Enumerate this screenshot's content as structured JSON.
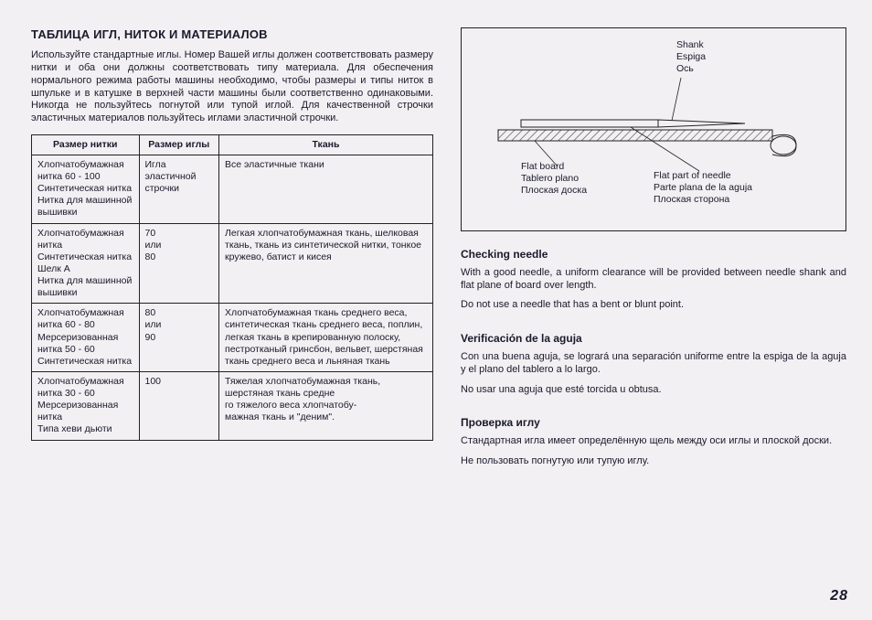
{
  "left": {
    "title": "ТАБЛИЦА ИГЛ, НИТОК И МАТЕРИАЛОВ",
    "intro": "Используйте стандартные иглы. Номер Вашей иглы должен соответствовать размеру нитки и оба они должны соответствовать типу материала. Для обеспечения нормального режима работы машины необходимо, чтобы размеры и типы ниток в шпульке и в катушке в верхней части машины были соответственно одинаковыми. Никогда не пользуйтесь погнутой или тупой иглой. Для качественной строчки эластичных материалов пользуйтесь иглами эластичной строчки.",
    "headers": {
      "c1": "Размер нитки",
      "c2": "Размер иглы",
      "c3": "Ткань"
    },
    "rows": [
      {
        "thread": "Хлопчатобумажная нитка 60 - 100\nСинтетическая нитка\nНитка для машинной вышивки",
        "needle": "Игла эластичной строчки",
        "fabric": "Все эластичные ткани"
      },
      {
        "thread": "Хлопчатобумажная нитка\nСинтетическая нитка\nШелк A\nНитка для машинной вышивки",
        "needle": "70\nили\n80",
        "fabric": "Легкая хлопчатобумажная ткань, шелковая ткань, ткань из синтетической нитки, тонкое кружево, батист и кисея"
      },
      {
        "thread": "Хлопчатобумажная нитка 60 - 80\nМерсеризованная нитка 50 - 60\nСинтетическая нитка",
        "needle": "80\nили\n90",
        "fabric": "Хлопчатобумажная ткань среднего веса, синтетическая ткань среднего веса, поплин, легкая ткань в крепированную полоску, пестротканый гринсбон, вельвет, шерстяная ткань среднего веса и льняная ткань"
      },
      {
        "thread": "Хлопчатобумажная нитка 30 - 60\nМерсеризованная нитка\nТипа хеви дьюти",
        "needle": "100",
        "fabric": "Тяжелая хлопчатобумажная ткань, шерстяная ткань средне\nго тяжелого веса хлопчатобу-\nмажная ткань и \"деним\"."
      }
    ]
  },
  "diagram": {
    "shank1": "Shank",
    "shank2": "Espiga",
    "shank3": "Ось",
    "board1": "Flat board",
    "board2": "Tablero plano",
    "board3": "Плоская доска",
    "flat1": "Flat part of needle",
    "flat2": "Parte plana de la aguja",
    "flat3": "Плоская сторона",
    "hatch": "#555"
  },
  "sections": [
    {
      "heading": "Checking needle",
      "p1": "With a good needle, a uniform clearance will be provided between needle shank and flat plane of board over length.",
      "p2": "Do not use a needle that has a bent or blunt point."
    },
    {
      "heading": "Verificación de la aguja",
      "p1": "Con una buena aguja, se logrará una separación uniforme entre la espiga de la aguja y el plano del tablero a lo largo.",
      "p2": "No usar una aguja que esté torcida u obtusa."
    },
    {
      "heading": "Проверка иглу",
      "p1": "Стандартная игла имеет определённую щель между оси иглы и плоской доски.",
      "p2": "Не пользовать погнутую или тупую иглу."
    }
  ],
  "pageNumber": "28"
}
